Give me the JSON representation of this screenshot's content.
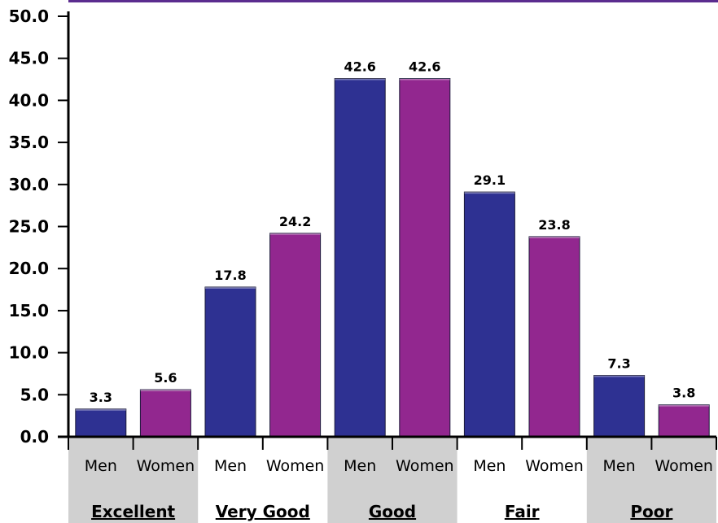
{
  "colors": {
    "men": "#2e3192",
    "women": "#92278f",
    "band": "#d0d0d0",
    "top_rule": "#5b2c8f"
  },
  "chart_data": {
    "type": "bar",
    "groups": [
      "Excellent",
      "Very Good",
      "Good",
      "Fair",
      "Poor"
    ],
    "series_labels": [
      "Men",
      "Women"
    ],
    "series": [
      {
        "key": "men",
        "values": [
          3.3,
          17.8,
          42.6,
          29.1,
          7.3
        ]
      },
      {
        "key": "women",
        "values": [
          5.6,
          24.2,
          42.6,
          23.8,
          3.8
        ]
      }
    ],
    "data_labels": {
      "men": [
        "3.3",
        "17.8",
        "42.6",
        "29.1",
        "7.3"
      ],
      "women": [
        "5.6",
        "24.2",
        "42.6",
        "23.8",
        "3.8"
      ]
    },
    "yticks": [
      "0.0",
      "5.0",
      "10.0",
      "15.0",
      "20.0",
      "25.0",
      "30.0",
      "35.0",
      "40.0",
      "45.0",
      "50.0"
    ],
    "ylim": [
      0,
      50
    ],
    "grid": false,
    "legend": "none",
    "shaded_groups": [
      "Excellent",
      "Good",
      "Poor"
    ]
  }
}
